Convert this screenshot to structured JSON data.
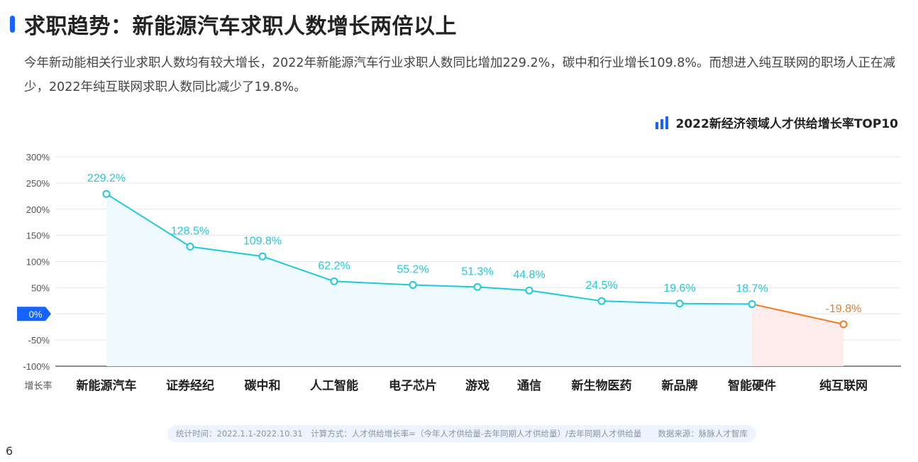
{
  "header": {
    "title": "求职趋势：新能源汽车求职人数增长两倍以上",
    "intro": "今年新动能相关行业求职人数均有较大增长，2022年新能源汽车行业求职人数同比增加229.2%，碳中和行业增长109.8%。而想进入纯互联网的职场人正在减少，2022年纯互联网求职人数同比减少了19.8%。"
  },
  "chart_data": {
    "type": "line",
    "title": "2022新经济领域人才供给增长率TOP10",
    "xlabel": "增长率",
    "ylabel": "",
    "ylim": [
      -100,
      300
    ],
    "yticks": [
      "300%",
      "250%",
      "200%",
      "150%",
      "100%",
      "50%",
      "0%",
      "-50%",
      "-100%"
    ],
    "grid": true,
    "categories": [
      "新能源汽车",
      "证券经纪",
      "碳中和",
      "人工智能",
      "电子芯片",
      "游戏",
      "通信",
      "新生物医药",
      "新品牌",
      "智能硬件",
      "纯互联网"
    ],
    "values": [
      229.2,
      128.5,
      109.8,
      62.2,
      55.2,
      51.3,
      44.8,
      24.5,
      19.6,
      18.7,
      -19.8
    ],
    "labels": [
      "229.2%",
      "128.5%",
      "109.8%",
      "62.2%",
      "55.2%",
      "51.3%",
      "44.8%",
      "24.5%",
      "19.6%",
      "18.7%",
      "-19.8%"
    ],
    "colors": {
      "positive": "#1ec8e0",
      "negative": "#f47a20",
      "positive_fill": "#eefafd",
      "negative_fill": "#fdecec",
      "zero_badge": "#1664ff"
    }
  },
  "footer": {
    "note": "统计时间：2022.1.1-2022.10.31　计算方式：人才供给增长率=（今年人才供给量-去年同期人才供给量）/去年同期人才供给量　　数据来源：脉脉人才智库",
    "page_number": "6"
  }
}
